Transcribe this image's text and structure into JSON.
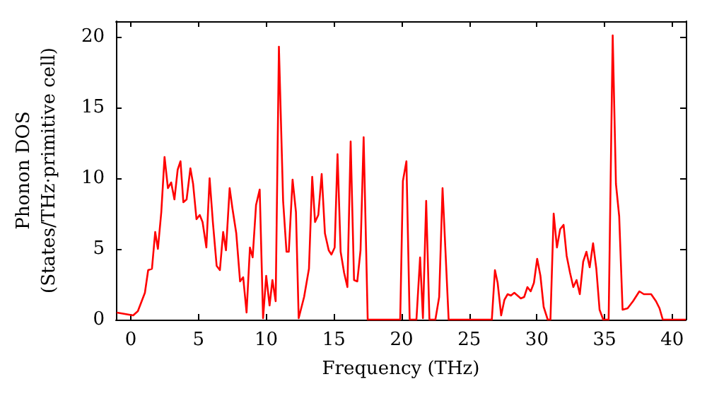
{
  "chart_data": {
    "type": "line",
    "xlabel": "Frequency (THz)",
    "ylabel": "Phonon DOS\n(States/THz·primitive cell)",
    "xlim": [
      -1.1,
      41.0
    ],
    "ylim": [
      0,
      21.1
    ],
    "xticks": [
      0,
      5,
      10,
      15,
      20,
      25,
      30,
      35,
      40
    ],
    "yticks": [
      0,
      5,
      10,
      15,
      20
    ],
    "grid": false,
    "marker": "none",
    "line_style": "solid",
    "x": [
      -1.04,
      0.17,
      0.52,
      1.04,
      1.28,
      1.56,
      1.8,
      2.0,
      2.25,
      2.49,
      2.74,
      2.98,
      3.22,
      3.46,
      3.67,
      3.88,
      4.12,
      4.4,
      4.6,
      4.85,
      5.09,
      5.3,
      5.58,
      5.82,
      6.06,
      6.34,
      6.58,
      6.82,
      7.03,
      7.3,
      7.5,
      7.79,
      8.07,
      8.3,
      8.55,
      8.8,
      9.0,
      9.25,
      9.52,
      9.77,
      10.0,
      10.25,
      10.46,
      10.7,
      10.94,
      11.25,
      11.5,
      11.67,
      11.95,
      12.2,
      12.4,
      12.8,
      13.16,
      13.4,
      13.61,
      13.85,
      14.1,
      14.34,
      14.62,
      14.82,
      15.06,
      15.27,
      15.5,
      15.76,
      16.0,
      16.24,
      16.49,
      16.73,
      16.97,
      17.2,
      17.5,
      19.9,
      20.1,
      20.36,
      20.6,
      21.1,
      21.37,
      21.58,
      21.82,
      22.06,
      22.5,
      22.78,
      23.03,
      23.48,
      26.67,
      26.9,
      27.1,
      27.36,
      27.6,
      27.84,
      28.08,
      28.33,
      28.57,
      28.81,
      29.06,
      29.3,
      29.54,
      29.78,
      30.02,
      30.26,
      30.5,
      30.8,
      31.0,
      31.24,
      31.48,
      31.72,
      31.97,
      32.2,
      32.45,
      32.69,
      32.93,
      33.17,
      33.42,
      33.66,
      33.9,
      34.15,
      34.39,
      34.63,
      34.9,
      35.3,
      35.6,
      35.84,
      36.08,
      36.33,
      36.7,
      37.1,
      37.57,
      37.9,
      38.44,
      38.8,
      39.06,
      39.3,
      41.0
    ],
    "series": [
      {
        "color": "#ff0000",
        "values": [
          0.5,
          0.3,
          0.6,
          1.9,
          3.5,
          3.6,
          6.2,
          5.0,
          7.6,
          11.5,
          9.3,
          9.7,
          8.5,
          10.6,
          11.2,
          8.3,
          8.5,
          10.7,
          9.6,
          7.1,
          7.4,
          6.9,
          5.1,
          10.0,
          6.9,
          3.8,
          3.5,
          6.2,
          4.9,
          9.3,
          7.9,
          6.1,
          2.7,
          3.0,
          0.5,
          5.1,
          4.4,
          8.1,
          9.2,
          0.1,
          3.1,
          1.0,
          2.8,
          1.3,
          19.3,
          8.4,
          4.8,
          4.8,
          9.9,
          7.6,
          0.1,
          1.6,
          3.6,
          10.1,
          6.9,
          7.4,
          10.3,
          6.1,
          4.9,
          4.6,
          5.1,
          11.7,
          4.8,
          3.3,
          2.3,
          12.6,
          2.8,
          2.7,
          4.9,
          12.9,
          0,
          0,
          9.8,
          11.2,
          0,
          0,
          4.4,
          0.1,
          8.4,
          0,
          0,
          1.6,
          9.3,
          0,
          0,
          3.5,
          2.6,
          0.3,
          1.4,
          1.8,
          1.7,
          1.9,
          1.7,
          1.5,
          1.6,
          2.3,
          2.0,
          2.6,
          4.3,
          3.1,
          0.9,
          0,
          0,
          7.5,
          5.1,
          6.4,
          6.7,
          4.5,
          3.3,
          2.3,
          2.8,
          1.8,
          4.1,
          4.8,
          3.7,
          5.4,
          3.6,
          0.7,
          0,
          0,
          20.1,
          9.6,
          7.3,
          0.7,
          0.8,
          1.3,
          2.0,
          1.8,
          1.8,
          1.3,
          0.8,
          0,
          0
        ]
      }
    ]
  }
}
